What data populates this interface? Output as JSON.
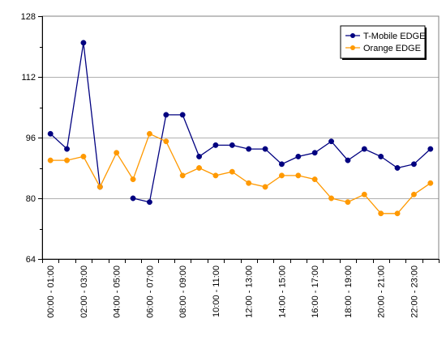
{
  "chart_data": {
    "type": "line",
    "categories": [
      "00:00 - 01:00",
      "01:00 - 02:00",
      "02:00 - 03:00",
      "03:00 - 04:00",
      "04:00 - 05:00",
      "05:00 - 06:00",
      "06:00 - 07:00",
      "07:00 - 08:00",
      "08:00 - 09:00",
      "09:00 - 10:00",
      "10:00 - 11:00",
      "11:00 - 12:00",
      "12:00 - 13:00",
      "13:00 - 14:00",
      "14:00 - 15:00",
      "15:00 - 16:00",
      "16:00 - 17:00",
      "17:00 - 18:00",
      "18:00 - 19:00",
      "19:00 - 20:00",
      "20:00 - 21:00",
      "21:00 - 22:00",
      "22:00 - 23:00",
      "23:00 - 24:00"
    ],
    "tick_labels": [
      "00:00 - 01:00",
      "",
      "02:00 - 03:00",
      "",
      "04:00 - 05:00",
      "",
      "06:00 - 07:00",
      "",
      "08:00 - 09:00",
      "",
      "10:00 - 11:00",
      "",
      "12:00 - 13:00",
      "",
      "14:00 - 15:00",
      "",
      "16:00 - 17:00",
      "",
      "18:00 - 19:00",
      "",
      "20:00 - 21:00",
      "",
      "22:00 - 23:00",
      ""
    ],
    "series": [
      {
        "name": "T-Mobile EDGE",
        "color": "#000080",
        "values": [
          97,
          93,
          121,
          83,
          null,
          80,
          79,
          102,
          102,
          91,
          94,
          94,
          93,
          93,
          89,
          91,
          92,
          95,
          90,
          93,
          91,
          88,
          89,
          93
        ]
      },
      {
        "name": "Orange EDGE",
        "color": "#FF9900",
        "values": [
          90,
          90,
          91,
          83,
          92,
          85,
          97,
          95,
          86,
          88,
          86,
          87,
          84,
          83,
          86,
          86,
          85,
          80,
          79,
          81,
          76,
          76,
          81,
          84
        ]
      }
    ],
    "ylim": [
      64,
      128
    ],
    "yticks": [
      64,
      80,
      96,
      112,
      128
    ],
    "grid": true,
    "legend_position": "top-right"
  }
}
